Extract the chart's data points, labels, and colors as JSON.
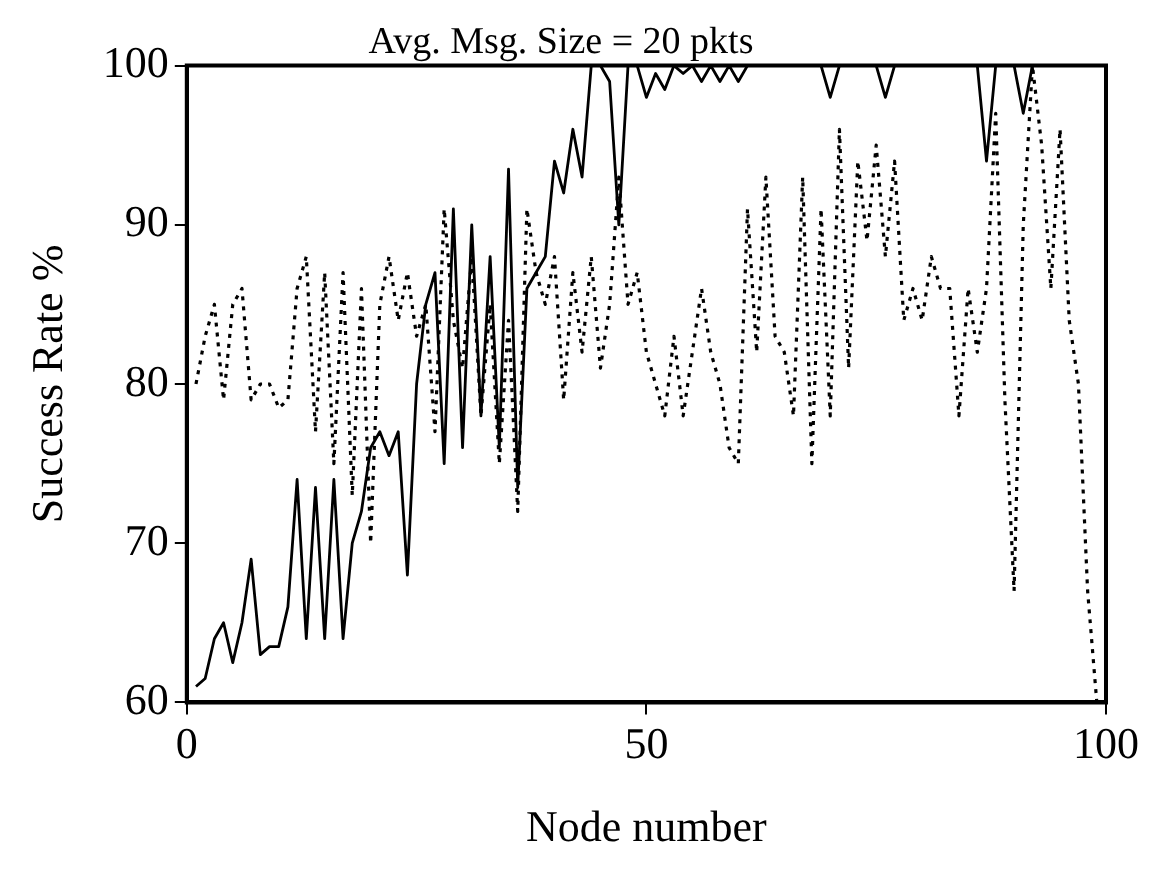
{
  "chart_data": {
    "type": "line",
    "title": "Avg. Msg. Size = 20 pkts",
    "xlabel": "Node number",
    "ylabel": "Success Rate %",
    "x": [
      1,
      2,
      3,
      4,
      5,
      6,
      7,
      8,
      9,
      10,
      11,
      12,
      13,
      14,
      15,
      16,
      17,
      18,
      19,
      20,
      21,
      22,
      23,
      24,
      25,
      26,
      27,
      28,
      29,
      30,
      31,
      32,
      33,
      34,
      35,
      36,
      37,
      38,
      39,
      40,
      41,
      42,
      43,
      44,
      45,
      46,
      47,
      48,
      49,
      50,
      51,
      52,
      53,
      54,
      55,
      56,
      57,
      58,
      59,
      60,
      61,
      62,
      63,
      64,
      65,
      66,
      67,
      68,
      69,
      70,
      71,
      72,
      73,
      74,
      75,
      76,
      77,
      78,
      79,
      80,
      81,
      82,
      83,
      84,
      85,
      86,
      87,
      88,
      89,
      90,
      91,
      92,
      93,
      94,
      95,
      96,
      97,
      98,
      99
    ],
    "series": [
      {
        "color": "#000000",
        "line_style": "solid",
        "values": [
          61,
          61.5,
          64,
          65,
          62.5,
          65,
          69,
          63,
          63.5,
          63.5,
          66,
          74,
          64,
          73.5,
          64,
          74,
          64,
          70,
          72,
          76,
          77,
          75.5,
          77,
          68,
          80,
          85,
          87,
          75,
          91,
          76,
          90,
          78,
          88,
          76,
          93.5,
          73.5,
          86,
          87,
          88,
          94,
          92,
          96,
          93,
          100,
          100,
          99,
          90,
          100,
          100,
          98,
          99.5,
          98.5,
          100,
          99.5,
          100,
          99,
          100,
          99,
          100,
          99,
          100,
          100,
          100,
          100,
          100,
          100,
          100,
          100,
          100,
          98,
          100,
          100,
          100,
          100,
          100,
          98,
          100,
          100,
          100,
          100,
          100,
          100,
          100,
          100,
          100,
          100,
          94,
          100,
          100,
          100,
          97,
          100,
          100,
          100,
          100,
          100,
          100,
          100,
          100
        ]
      },
      {
        "color": "#000000",
        "line_style": "dotted",
        "values": [
          80,
          83,
          85,
          79,
          85,
          86,
          79,
          80,
          80,
          78.5,
          79,
          86,
          88,
          77,
          87,
          75,
          87,
          73,
          86,
          70,
          85,
          88,
          84,
          87,
          83,
          85,
          77,
          91,
          84,
          81,
          88,
          78,
          85,
          75,
          84,
          72,
          91,
          87,
          85,
          88,
          79,
          87,
          82,
          88,
          81,
          85,
          93,
          85,
          87,
          82,
          80,
          78,
          83,
          78,
          82,
          86,
          82,
          80,
          76,
          75,
          91,
          82,
          93,
          83,
          82,
          78,
          93,
          75,
          91,
          78,
          96,
          81,
          94,
          89,
          95,
          88,
          94,
          84,
          86,
          84,
          88,
          86,
          86,
          78,
          86,
          82,
          86,
          97,
          79,
          67,
          90,
          100,
          95,
          86,
          96,
          84,
          80,
          67,
          60
        ]
      }
    ],
    "xlim": [
      0,
      100
    ],
    "xticks": [
      0,
      50,
      100
    ],
    "ylim": [
      60,
      100
    ],
    "yticks": [
      60,
      70,
      80,
      90,
      100
    ],
    "grid": false,
    "legend": false,
    "marker": "none"
  }
}
